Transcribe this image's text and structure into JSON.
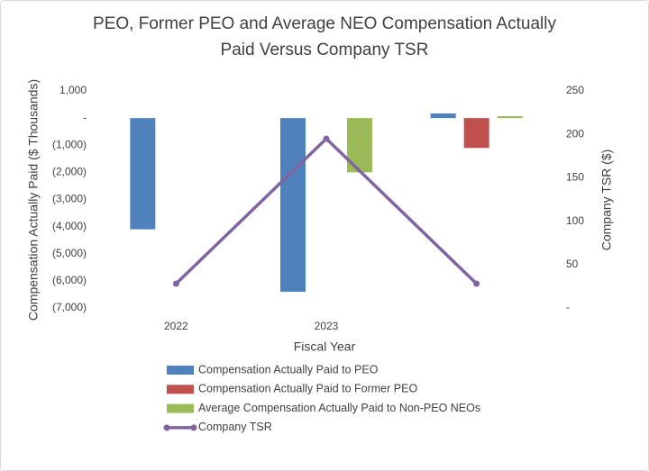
{
  "chart_data": {
    "type": "bar",
    "title": [
      "PEO, Former PEO and Average NEO Compensation Actually",
      "Paid Versus Company TSR"
    ],
    "x_label": "Fiscal Year",
    "y_label": "Compensation Actually Paid  ($ Thousands)",
    "y2_label": "Company TSR ($)",
    "categories": [
      "2022",
      "2023",
      null
    ],
    "series": [
      {
        "name": "Compensation Actually Paid to PEO",
        "type": "bar",
        "color": "#4f81bd",
        "values": [
          -4100,
          -6400,
          170
        ]
      },
      {
        "name": "Compensation Actually Paid to Former PEO",
        "type": "bar",
        "color": "#c0504d",
        "values": [
          null,
          null,
          -1100
        ]
      },
      {
        "name": "Average Compensation Actually Paid to Non-PEO NEOs",
        "type": "bar",
        "color": "#9bbb59",
        "values": [
          null,
          -2000,
          70
        ]
      },
      {
        "name": "Company TSR",
        "type": "line",
        "color": "#8064a2",
        "axis": "y2",
        "values": [
          28,
          195,
          28
        ]
      }
    ],
    "ylim": [
      -7000,
      1000
    ],
    "yticks": [
      {
        "value": -7000,
        "label": "(7,000)"
      },
      {
        "value": -6000,
        "label": "(6,000)"
      },
      {
        "value": -5000,
        "label": "(5,000)"
      },
      {
        "value": -4000,
        "label": "(4,000)"
      },
      {
        "value": -3000,
        "label": "(3,000)"
      },
      {
        "value": -2000,
        "label": "(2,000)"
      },
      {
        "value": -1000,
        "label": "(1,000)"
      },
      {
        "value": 0,
        "label": "-"
      },
      {
        "value": 1000,
        "label": "1,000"
      }
    ],
    "y2lim": [
      0,
      250
    ],
    "y2ticks": [
      {
        "value": 0,
        "label": "-"
      },
      50,
      100,
      150,
      200,
      250
    ],
    "grid": false
  }
}
